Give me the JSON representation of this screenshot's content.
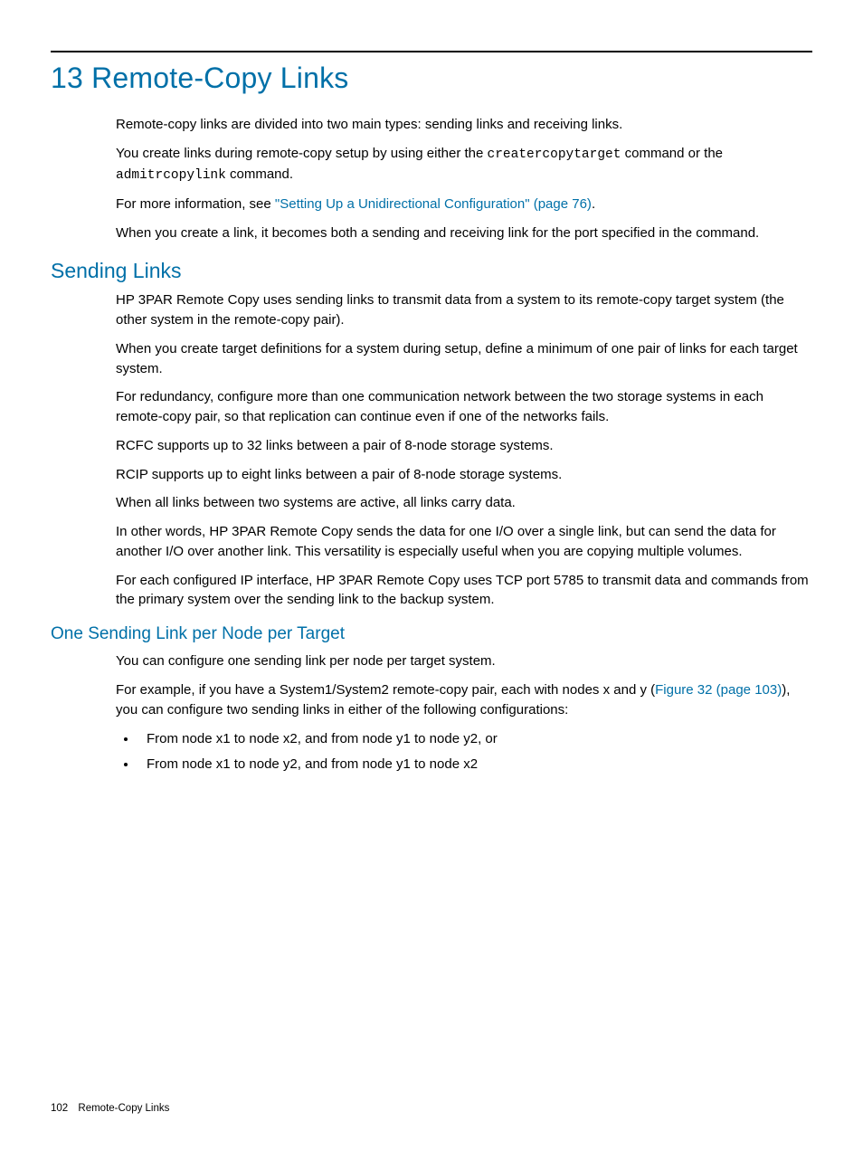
{
  "colors": {
    "heading": "#0070a8",
    "text": "#000000",
    "link": "#0070a8",
    "rule": "#000000",
    "background": "#ffffff"
  },
  "typography": {
    "body_fontsize": 15,
    "h1_fontsize": 32,
    "h2_fontsize": 23,
    "h3_fontsize": 19,
    "footer_fontsize": 11.5,
    "code_fontfamily": "Courier New"
  },
  "chapter": {
    "title": "13 Remote-Copy Links"
  },
  "intro": {
    "p1": "Remote-copy links are divided into two main types: sending links and receiving links.",
    "p2_pre": "You create links during remote-copy setup by using either the ",
    "p2_cmd1": "creatercopytarget",
    "p2_mid": " command or the ",
    "p2_cmd2": "admitrcopylink",
    "p2_post": " command.",
    "p3_pre": "For more information, see ",
    "p3_link": "\"Setting Up a Unidirectional Configuration\" (page 76)",
    "p3_post": ".",
    "p4": "When you create a link, it becomes both a sending and receiving link for the port specified in the command."
  },
  "section1": {
    "title": "Sending Links",
    "p1": "HP 3PAR Remote Copy uses sending links to transmit data from a system to its remote-copy target system (the other system in the remote-copy pair).",
    "p2": "When you create target definitions for a system during setup, define a minimum of one pair of links for each target system.",
    "p3": "For redundancy, configure more than one communication network between the two storage systems in each remote-copy pair, so that replication can continue even if one of the networks fails.",
    "p4": "RCFC supports up to 32 links between a pair of 8-node storage systems.",
    "p5": "RCIP supports up to eight links between a pair of 8-node storage systems.",
    "p6": "When all links between two systems are active, all links carry data.",
    "p7": "In other words, HP 3PAR Remote Copy sends the data for one I/O over a single link, but can send the data for another I/O over another link. This versatility is especially useful when you are copying multiple volumes.",
    "p8": "For each configured IP interface, HP 3PAR Remote Copy uses TCP port 5785 to transmit data and commands from the primary system over the sending link to the backup system."
  },
  "section2": {
    "title": "One Sending Link per Node per Target",
    "p1": "You can configure one sending link per node per target system.",
    "p2_pre": "For example, if you have a System1/System2 remote-copy pair, each with nodes x and y (",
    "p2_link": "Figure 32 (page 103)",
    "p2_post": "), you can configure two sending links in either of the following configurations:",
    "bullets": {
      "0": "From node x1 to node x2, and from node y1 to node y2, or",
      "1": "From node x1 to node y2, and from node y1 to node x2"
    }
  },
  "footer": {
    "page_number": "102",
    "section": "Remote-Copy Links"
  }
}
